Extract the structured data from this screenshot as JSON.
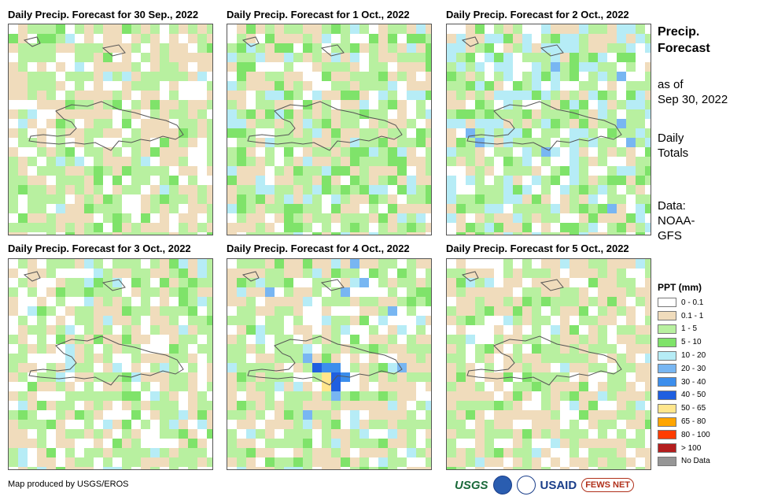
{
  "panels": [
    {
      "title": "Daily Precip. Forecast for 30 Sep., 2022"
    },
    {
      "title": "Daily Precip. Forecast for 1 Oct., 2022"
    },
    {
      "title": "Daily Precip. Forecast for 2 Oct., 2022"
    },
    {
      "title": "Daily Precip. Forecast for 3 Oct., 2022"
    },
    {
      "title": "Daily Precip. Forecast for 4 Oct., 2022"
    },
    {
      "title": "Daily Precip. Forecast for 5 Oct., 2022"
    }
  ],
  "sidebar": {
    "title_line1": "Precip.",
    "title_line2": "Forecast",
    "as_of_label": "as of",
    "as_of_date": "Sep 30, 2022",
    "totals_line1": "Daily",
    "totals_line2": "Totals",
    "data_line1": "Data:",
    "data_line2": "NOAA-",
    "data_line3": "GFS"
  },
  "legend": {
    "title": "PPT (mm)",
    "items": [
      {
        "label": "0 - 0.1",
        "color": "#ffffff"
      },
      {
        "label": "0.1 - 1",
        "color": "#f0dcbc"
      },
      {
        "label": "1 - 5",
        "color": "#b8f0a0"
      },
      {
        "label": "5 - 10",
        "color": "#7fe36a"
      },
      {
        "label": "10 - 20",
        "color": "#b6ecf6"
      },
      {
        "label": "20 - 30",
        "color": "#78b6f2"
      },
      {
        "label": "30 - 40",
        "color": "#3c8eec"
      },
      {
        "label": "40 - 50",
        "color": "#1f5fe0"
      },
      {
        "label": "50 - 65",
        "color": "#ffe68c"
      },
      {
        "label": "65 - 80",
        "color": "#ffa500"
      },
      {
        "label": "80 - 100",
        "color": "#ff3c00"
      },
      {
        "label": "> 100",
        "color": "#b41e1e"
      },
      {
        "label": "No Data",
        "color": "#969696"
      }
    ]
  },
  "footer": {
    "credit": "Map produced by USGS/EROS"
  },
  "logos": {
    "usgs": "USGS",
    "usaid": "USAID",
    "fews": "FEWS NET"
  }
}
